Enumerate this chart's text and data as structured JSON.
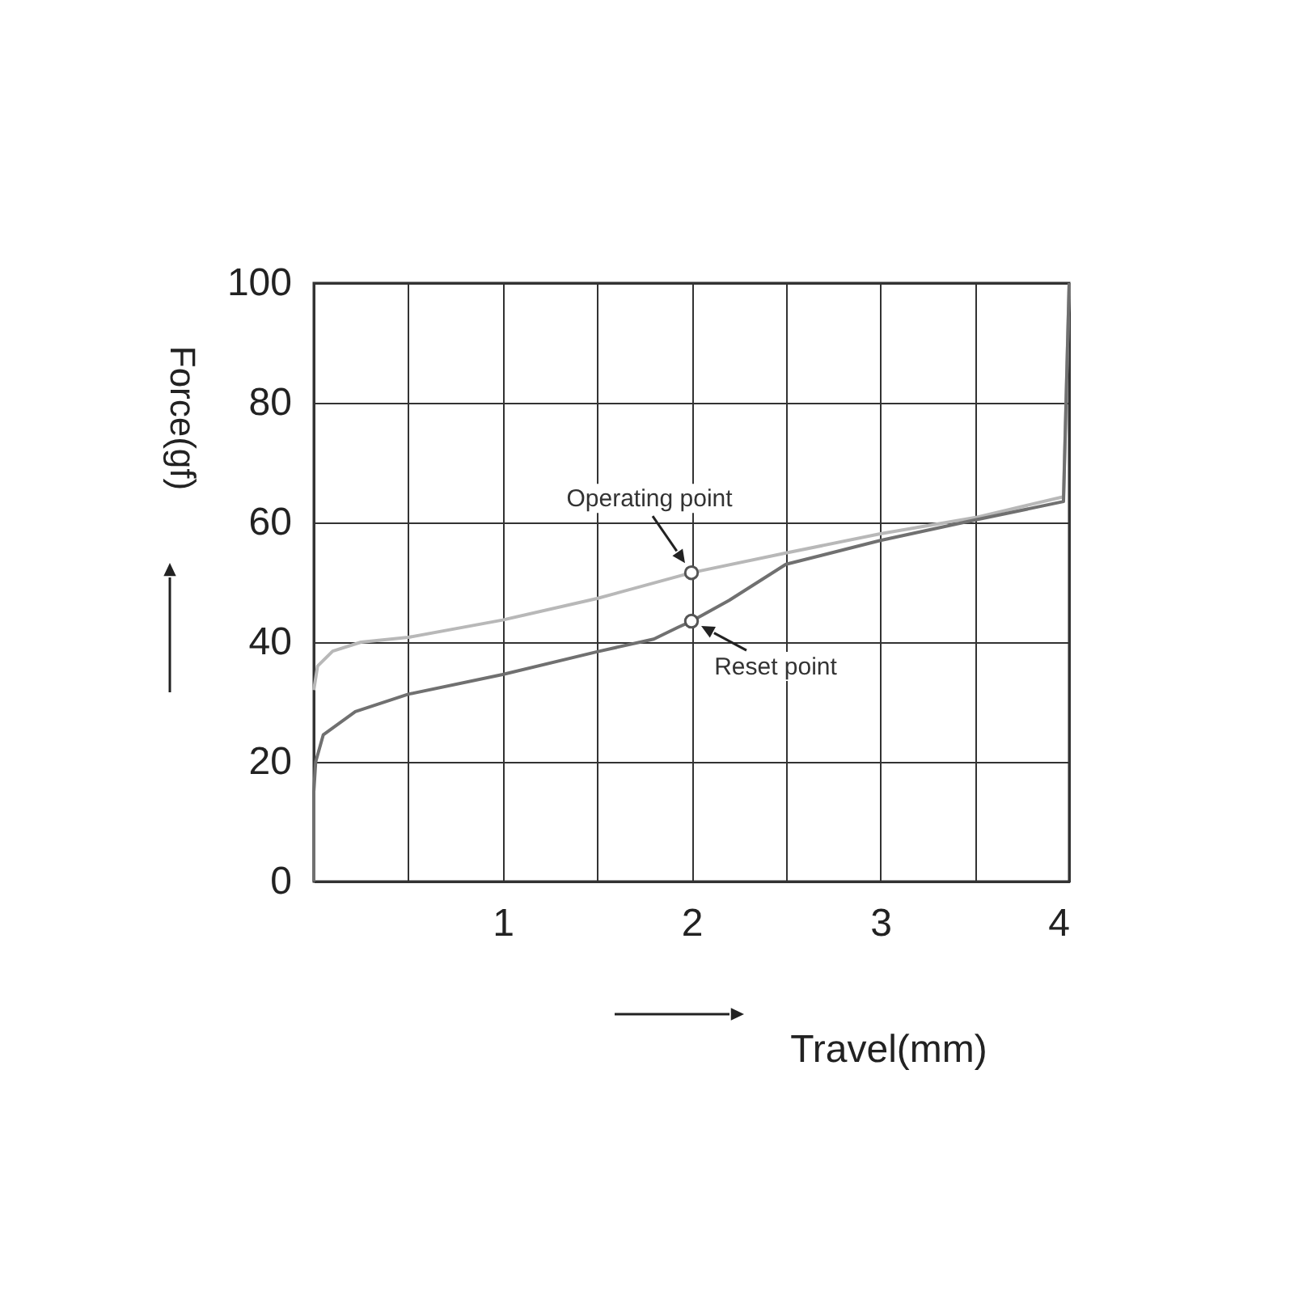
{
  "chart_data": {
    "type": "line",
    "xlabel": "Travel(mm)",
    "ylabel": "Force(gf)",
    "xlim": [
      0,
      4
    ],
    "ylim": [
      0,
      100
    ],
    "xticks": [
      {
        "value": 0,
        "label": null
      },
      {
        "value": 0.5,
        "label": null
      },
      1,
      {
        "value": 1.5,
        "label": null
      },
      2,
      {
        "value": 2.5,
        "label": null
      },
      3,
      {
        "value": 3.5,
        "label": null
      },
      4
    ],
    "yticks": [
      0,
      20,
      40,
      60,
      80,
      100
    ],
    "grid": true,
    "legend": false,
    "marker": "none",
    "line_style": "solid",
    "series": [
      {
        "color": "#b8b8b8",
        "x": [
          0,
          0.02,
          0.1,
          0.25,
          0.5,
          1,
          1.5,
          2,
          2.5,
          3,
          3.5,
          3.97,
          4
        ],
        "values": [
          32,
          36,
          38.5,
          40,
          40.8,
          43.7,
          47.3,
          51.6,
          54.9,
          58.1,
          60.8,
          64.3,
          100
        ]
      },
      {
        "color": "#707070",
        "x": [
          0,
          0,
          0.01,
          0.05,
          0.22,
          0.5,
          1,
          1.5,
          1.8,
          1.93,
          2,
          2.2,
          2.5,
          3,
          3.5,
          3.97,
          4
        ],
        "values": [
          0,
          15,
          20,
          24.5,
          28.4,
          31.3,
          34.6,
          38.4,
          40.5,
          42.5,
          43.5,
          47,
          53,
          57,
          60.4,
          63.5,
          100
        ]
      }
    ],
    "annotations": [
      {
        "text": "Operating point",
        "x": 2,
        "y": 51.6
      },
      {
        "text": "Reset point",
        "x": 2,
        "y": 43.5
      }
    ]
  }
}
